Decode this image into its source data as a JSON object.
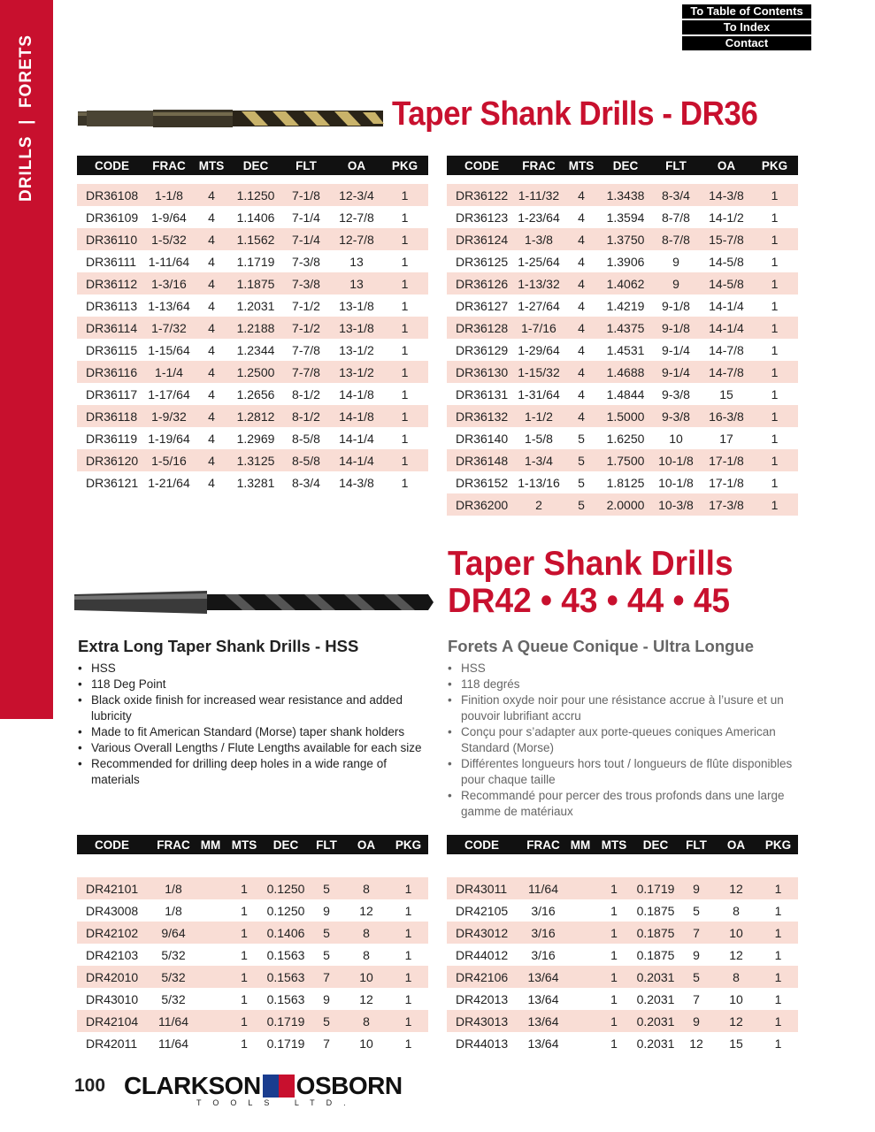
{
  "sidebar": {
    "label": "DRILLS  |  FORETS"
  },
  "nav": {
    "toc": "To Table of Contents",
    "index": "To Index",
    "contact": "Contact"
  },
  "colors": {
    "accent": "#c8102e",
    "stripe": "#f9ddd5",
    "header": "#111111"
  },
  "section1": {
    "title": "Taper Shank Drills - DR36",
    "columns": [
      "CODE",
      "FRAC",
      "MTS",
      "DEC",
      "FLT",
      "OA",
      "PKG"
    ],
    "left_rows": [
      [
        "DR36108",
        "1-1/8",
        "4",
        "1.1250",
        "7-1/8",
        "12-3/4",
        "1"
      ],
      [
        "DR36109",
        "1-9/64",
        "4",
        "1.1406",
        "7-1/4",
        "12-7/8",
        "1"
      ],
      [
        "DR36110",
        "1-5/32",
        "4",
        "1.1562",
        "7-1/4",
        "12-7/8",
        "1"
      ],
      [
        "DR36111",
        "1-11/64",
        "4",
        "1.1719",
        "7-3/8",
        "13",
        "1"
      ],
      [
        "DR36112",
        "1-3/16",
        "4",
        "1.1875",
        "7-3/8",
        "13",
        "1"
      ],
      [
        "DR36113",
        "1-13/64",
        "4",
        "1.2031",
        "7-1/2",
        "13-1/8",
        "1"
      ],
      [
        "DR36114",
        "1-7/32",
        "4",
        "1.2188",
        "7-1/2",
        "13-1/8",
        "1"
      ],
      [
        "DR36115",
        "1-15/64",
        "4",
        "1.2344",
        "7-7/8",
        "13-1/2",
        "1"
      ],
      [
        "DR36116",
        "1-1/4",
        "4",
        "1.2500",
        "7-7/8",
        "13-1/2",
        "1"
      ],
      [
        "DR36117",
        "1-17/64",
        "4",
        "1.2656",
        "8-1/2",
        "14-1/8",
        "1"
      ],
      [
        "DR36118",
        "1-9/32",
        "4",
        "1.2812",
        "8-1/2",
        "14-1/8",
        "1"
      ],
      [
        "DR36119",
        "1-19/64",
        "4",
        "1.2969",
        "8-5/8",
        "14-1/4",
        "1"
      ],
      [
        "DR36120",
        "1-5/16",
        "4",
        "1.3125",
        "8-5/8",
        "14-1/4",
        "1"
      ],
      [
        "DR36121",
        "1-21/64",
        "4",
        "1.3281",
        "8-3/4",
        "14-3/8",
        "1"
      ]
    ],
    "right_rows": [
      [
        "DR36122",
        "1-11/32",
        "4",
        "1.3438",
        "8-3/4",
        "14-3/8",
        "1"
      ],
      [
        "DR36123",
        "1-23/64",
        "4",
        "1.3594",
        "8-7/8",
        "14-1/2",
        "1"
      ],
      [
        "DR36124",
        "1-3/8",
        "4",
        "1.3750",
        "8-7/8",
        "15-7/8",
        "1"
      ],
      [
        "DR36125",
        "1-25/64",
        "4",
        "1.3906",
        "9",
        "14-5/8",
        "1"
      ],
      [
        "DR36126",
        "1-13/32",
        "4",
        "1.4062",
        "9",
        "14-5/8",
        "1"
      ],
      [
        "DR36127",
        "1-27/64",
        "4",
        "1.4219",
        "9-1/8",
        "14-1/4",
        "1"
      ],
      [
        "DR36128",
        "1-7/16",
        "4",
        "1.4375",
        "9-1/8",
        "14-1/4",
        "1"
      ],
      [
        "DR36129",
        "1-29/64",
        "4",
        "1.4531",
        "9-1/4",
        "14-7/8",
        "1"
      ],
      [
        "DR36130",
        "1-15/32",
        "4",
        "1.4688",
        "9-1/4",
        "14-7/8",
        "1"
      ],
      [
        "DR36131",
        "1-31/64",
        "4",
        "1.4844",
        "9-3/8",
        "15",
        "1"
      ],
      [
        "DR36132",
        "1-1/2",
        "4",
        "1.5000",
        "9-3/8",
        "16-3/8",
        "1"
      ],
      [
        "DR36140",
        "1-5/8",
        "5",
        "1.6250",
        "10",
        "17",
        "1"
      ],
      [
        "DR36148",
        "1-3/4",
        "5",
        "1.7500",
        "10-1/8",
        "17-1/8",
        "1"
      ],
      [
        "DR36152",
        "1-13/16",
        "5",
        "1.8125",
        "10-1/8",
        "17-1/8",
        "1"
      ],
      [
        "DR36200",
        "2",
        "5",
        "2.0000",
        "10-3/8",
        "17-3/8",
        "1"
      ]
    ]
  },
  "section2": {
    "title_line1": "Taper Shank Drills",
    "title_line2": "DR42 • 43 • 44 • 45",
    "en_heading": "Extra Long Taper Shank Drills - HSS",
    "en_bullets": [
      "HSS",
      "118 Deg Point",
      "Black oxide finish for increased wear resistance and added lubricity",
      "Made to fit American Standard (Morse) taper shank holders",
      "Various Overall Lengths / Flute Lengths available for each size",
      "Recommended for drilling deep holes in a wide range of materials"
    ],
    "fr_heading": "Forets A Queue Conique - Ultra Longue",
    "fr_bullets": [
      "HSS",
      "118 degrés",
      "Finition oxyde noir pour une résistance accrue à l’usure et un pouvoir lubrifiant accru",
      "Conçu pour s’adapter aux porte-queues coniques American Standard (Morse)",
      "Différentes longueurs hors tout / longueurs de flûte disponibles pour chaque taille",
      "Recommandé pour percer des trous profonds dans une large gamme de matériaux"
    ],
    "columns": [
      "CODE",
      "FRAC",
      "MM",
      "MTS",
      "DEC",
      "FLT",
      "OA",
      "PKG"
    ],
    "left_rows": [
      [
        "DR42101",
        "1/8",
        "",
        "1",
        "0.1250",
        "5",
        "8",
        "1"
      ],
      [
        "DR43008",
        "1/8",
        "",
        "1",
        "0.1250",
        "9",
        "12",
        "1"
      ],
      [
        "DR42102",
        "9/64",
        "",
        "1",
        "0.1406",
        "5",
        "8",
        "1"
      ],
      [
        "DR42103",
        "5/32",
        "",
        "1",
        "0.1563",
        "5",
        "8",
        "1"
      ],
      [
        "DR42010",
        "5/32",
        "",
        "1",
        "0.1563",
        "7",
        "10",
        "1"
      ],
      [
        "DR43010",
        "5/32",
        "",
        "1",
        "0.1563",
        "9",
        "12",
        "1"
      ],
      [
        "DR42104",
        "11/64",
        "",
        "1",
        "0.1719",
        "5",
        "8",
        "1"
      ],
      [
        "DR42011",
        "11/64",
        "",
        "1",
        "0.1719",
        "7",
        "10",
        "1"
      ]
    ],
    "right_rows": [
      [
        "DR43011",
        "11/64",
        "",
        "1",
        "0.1719",
        "9",
        "12",
        "1"
      ],
      [
        "DR42105",
        "3/16",
        "",
        "1",
        "0.1875",
        "5",
        "8",
        "1"
      ],
      [
        "DR43012",
        "3/16",
        "",
        "1",
        "0.1875",
        "7",
        "10",
        "1"
      ],
      [
        "DR44012",
        "3/16",
        "",
        "1",
        "0.1875",
        "9",
        "12",
        "1"
      ],
      [
        "DR42106",
        "13/64",
        "",
        "1",
        "0.2031",
        "5",
        "8",
        "1"
      ],
      [
        "DR42013",
        "13/64",
        "",
        "1",
        "0.2031",
        "7",
        "10",
        "1"
      ],
      [
        "DR43013",
        "13/64",
        "",
        "1",
        "0.2031",
        "9",
        "12",
        "1"
      ],
      [
        "DR44013",
        "13/64",
        "",
        "1",
        "0.2031",
        "12",
        "15",
        "1"
      ]
    ]
  },
  "footer": {
    "page_number": "100",
    "logo_left": "CLARKSON",
    "logo_right": "OSBORN",
    "logo_sub": "TOOLS LTD."
  }
}
